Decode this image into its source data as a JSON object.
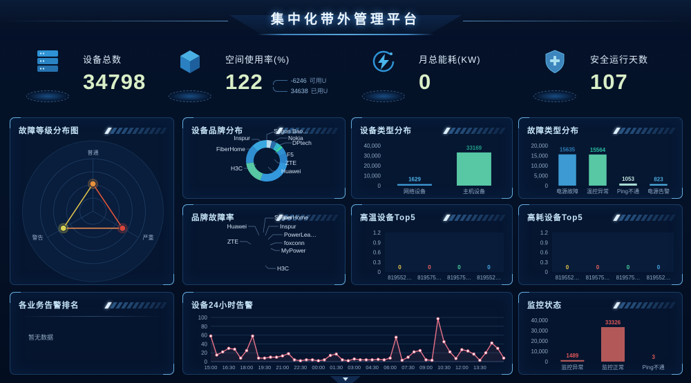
{
  "app": {
    "title": "集中化带外管理平台"
  },
  "colors": {
    "background": "#041228",
    "panel_border": "#3a7ab6",
    "accent_blue": "#3d9ad2",
    "accent_green": "#57c7a4",
    "line_pink": "#e8738a",
    "monitor_red": "#b25858",
    "kpi_number": "#d9efc7",
    "title_text": "#eef7ff"
  },
  "kpis": [
    {
      "icon": "server-icon",
      "label": "设备总数",
      "value": "34798"
    },
    {
      "icon": "cube-icon",
      "label": "空间使用率(%)",
      "value": "122",
      "extra": [
        {
          "value": "-6246",
          "unit": "可用U"
        },
        {
          "value": "34638",
          "unit": "已用U"
        }
      ]
    },
    {
      "icon": "lightning-icon",
      "label": "月总能耗(KW)",
      "value": "0"
    },
    {
      "icon": "shield-icon",
      "label": "安全运行天数",
      "value": "107"
    }
  ],
  "panels": {
    "fault_level": {
      "title": "故障等级分布图"
    },
    "brand": {
      "title": "设备品牌分布",
      "labels": {
        "left": [
          "Inspur",
          "FiberHome",
          "H3C"
        ],
        "right": [
          "F5",
          "ZTE",
          "Huawei"
        ],
        "top": [
          "Sugon…",
          "Bao…",
          "Nokia",
          "DPtech"
        ]
      }
    },
    "device_type": {
      "title": "设备类型分布"
    },
    "fault_type": {
      "title": "故障类型分布"
    },
    "brand_fault": {
      "title": "品牌故障率",
      "labels": {
        "left": [
          "Huawei",
          "ZTE"
        ],
        "right": [
          "Sugon",
          "FiberHome",
          "Inspur",
          "PowerLea…",
          "foxconn",
          "MyPower"
        ],
        "bottom": [
          "H3C"
        ]
      }
    },
    "high_temp": {
      "title": "高温设备Top5"
    },
    "high_power": {
      "title": "高耗设备Top5"
    },
    "biz_rank": {
      "title": "各业务告警排名",
      "empty_text": "暂无数据"
    },
    "alarm_24h": {
      "title": "设备24小时告警"
    },
    "monitor": {
      "title": "监控状态"
    }
  },
  "chart_data": [
    {
      "panel": "fault_level",
      "type": "radar",
      "title": "故障等级分布图",
      "axes": [
        "普通",
        "严重",
        "警告"
      ],
      "values_relative": [
        0.52,
        0.65,
        0.65
      ],
      "point_colors": [
        "#e8913c",
        "#d9463b",
        "#d6d052"
      ],
      "edge_colors": [
        "#e0553a",
        "#e68a50",
        "#dcc04e"
      ]
    },
    {
      "panel": "brand",
      "type": "pie",
      "subtype": "donut",
      "title": "设备品牌分布",
      "segments": [
        {
          "name": "Sugon",
          "value": 4,
          "color": "#bcdcec"
        },
        {
          "name": "Nokia",
          "value": 4,
          "color": "#2a6da8"
        },
        {
          "name": "DPtech",
          "value": 4,
          "color": "#35b8cc"
        },
        {
          "name": "PowerLeader",
          "value": 2,
          "color": "#3fd6a0"
        },
        {
          "name": "F5",
          "value": 5,
          "color": "#2f8fd0"
        },
        {
          "name": "ZTE",
          "value": 8,
          "color": "#2a82c8"
        },
        {
          "name": "Huawei",
          "value": 28,
          "color": "#3398dc"
        },
        {
          "name": "H3C",
          "value": 18,
          "color": "#57c7a4"
        },
        {
          "name": "FiberHome",
          "value": 15,
          "color": "#2f8fd0"
        },
        {
          "name": "Inspur",
          "value": 12,
          "color": "#3aa8e0"
        }
      ]
    },
    {
      "panel": "device_type",
      "type": "bar",
      "title": "设备类型分布",
      "categories": [
        "网络设备",
        "主机设备"
      ],
      "values": [
        1629,
        33169
      ],
      "colors": [
        "#3d9ad2",
        "#57c7a4"
      ],
      "value_colors": [
        "#4db3e8",
        "#1e9e85"
      ],
      "ylim": [
        0,
        40000
      ],
      "yticks": [
        0,
        10000,
        20000,
        30000,
        40000
      ]
    },
    {
      "panel": "fault_type",
      "type": "bar",
      "title": "故障类型分布",
      "categories": [
        "电源故障",
        "温控异常",
        "Ping不通",
        "电源告警"
      ],
      "values": [
        15635,
        15564,
        1053,
        823
      ],
      "colors": [
        "#3d9ad2",
        "#57c7a4",
        "#a8dcd4",
        "#4aa8d8"
      ],
      "value_colors": [
        "#2f7fb8",
        "#2bbfa0",
        "#bfe0da",
        "#4aa8d8"
      ],
      "ylim": [
        0,
        20000
      ],
      "yticks": [
        0,
        5000,
        10000,
        15000,
        20000
      ]
    },
    {
      "panel": "high_temp",
      "type": "bar",
      "title": "高温设备Top5",
      "categories": [
        "819552…",
        "819575…",
        "819575…",
        "819552…"
      ],
      "values": [
        0,
        0,
        0,
        0
      ],
      "colors": [
        "#e8c84a",
        "#e86060",
        "#4ad0a0",
        "#4aa8e8"
      ],
      "value_colors": [
        "#e8c84a",
        "#e86060",
        "#4ad0a0",
        "#4aa8e8"
      ],
      "ylim": [
        0,
        1.2
      ],
      "yticks": [
        0,
        0.3,
        0.6,
        0.9,
        1.2
      ],
      "plot_bg": true
    },
    {
      "panel": "high_power",
      "type": "bar",
      "title": "高耗设备Top5",
      "categories": [
        "819552…",
        "819575…",
        "819575…",
        "819552…"
      ],
      "values": [
        0,
        0,
        0,
        0
      ],
      "colors": [
        "#e8c84a",
        "#e86060",
        "#4ad0a0",
        "#4aa8e8"
      ],
      "value_colors": [
        "#e8c84a",
        "#e86060",
        "#4ad0a0",
        "#4aa8e8"
      ],
      "ylim": [
        0,
        1.2
      ],
      "yticks": [
        0,
        0.3,
        0.6,
        0.9,
        1.2
      ],
      "plot_bg": true
    },
    {
      "panel": "alarm_24h",
      "type": "line",
      "title": "设备24小时告警",
      "x_labels": [
        "15:00",
        "16:30",
        "18:00",
        "19:30",
        "21:00",
        "22:30",
        "00:00",
        "01:30",
        "03:00",
        "04:30",
        "06:00",
        "07:30",
        "09:00",
        "10:30",
        "12:00",
        "13:30"
      ],
      "label_every": 3,
      "values": [
        58,
        15,
        22,
        30,
        28,
        8,
        25,
        58,
        8,
        8,
        10,
        10,
        13,
        18,
        4,
        2,
        4,
        4,
        2,
        4,
        14,
        17,
        4,
        2,
        6,
        4,
        4,
        4,
        5,
        4,
        8,
        55,
        3,
        10,
        22,
        25,
        4,
        3,
        97,
        45,
        22,
        7,
        27,
        24,
        17,
        3,
        20,
        42,
        30,
        8
      ],
      "color": "#e8738a",
      "ylim": [
        0,
        100
      ],
      "yticks": [
        0,
        20,
        40,
        60,
        80,
        100
      ],
      "grid": true
    },
    {
      "panel": "monitor",
      "type": "bar",
      "title": "监控状态",
      "categories": [
        "监控异常",
        "监控正常",
        "Ping不通"
      ],
      "values": [
        1489,
        33326,
        3
      ],
      "colors": [
        "#b25858",
        "#b25858",
        "#b25858"
      ],
      "value_colors": [
        "#e05858",
        "#e05858",
        "#e05858"
      ],
      "ylim": [
        0,
        40000
      ],
      "yticks": [
        0,
        10000,
        20000,
        30000,
        40000
      ]
    }
  ]
}
